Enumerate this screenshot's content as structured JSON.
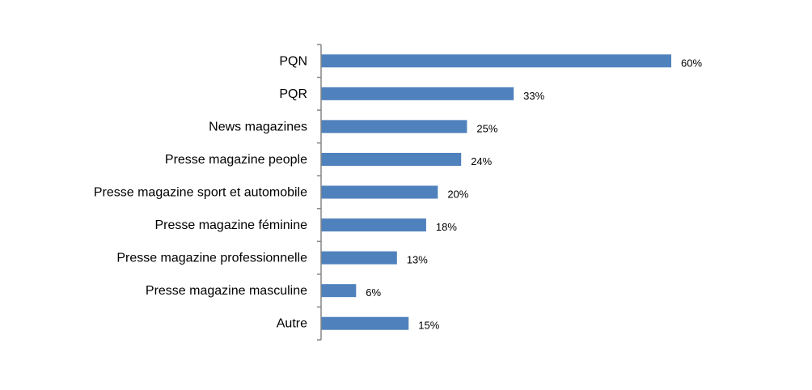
{
  "chart_data": {
    "type": "bar",
    "orientation": "horizontal",
    "categories": [
      "PQN",
      "PQR",
      "News magazines",
      "Presse magazine people",
      "Presse magazine sport et automobile",
      "Presse magazine féminine",
      "Presse magazine professionnelle",
      "Presse magazine masculine",
      "Autre"
    ],
    "values": [
      60,
      33,
      25,
      24,
      20,
      18,
      13,
      6,
      15
    ],
    "value_labels": [
      "60%",
      "33%",
      "25%",
      "24%",
      "20%",
      "18%",
      "13%",
      "6%",
      "15%"
    ],
    "title": "",
    "xlabel": "",
    "ylabel": "",
    "xlim": [
      0,
      60
    ],
    "grid": false,
    "legend": "none",
    "bar_color": "#4F81BD"
  }
}
